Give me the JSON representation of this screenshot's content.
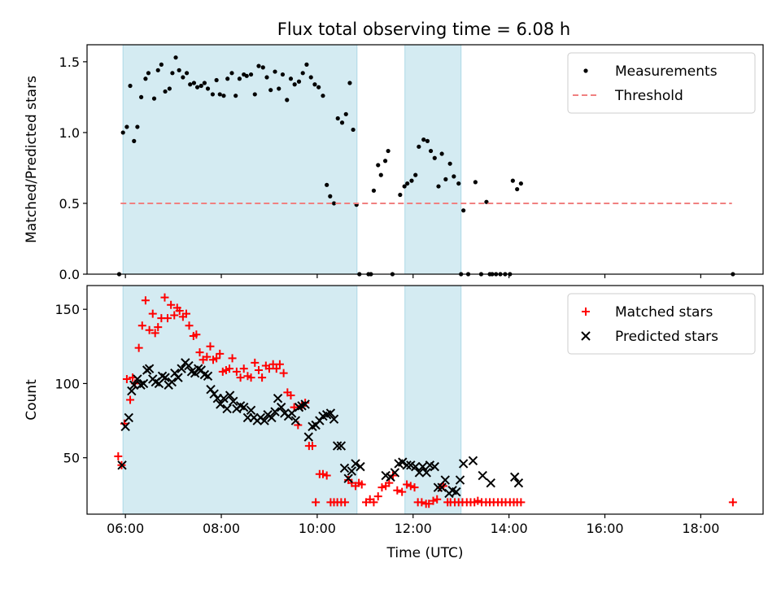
{
  "title": "Flux total observing time = 6.08 h",
  "chart_data": [
    {
      "type": "scatter",
      "ylabel": "Matched/Predicted stars",
      "xlabel": "",
      "xlim": [
        5.2,
        19.3
      ],
      "ylim": [
        0,
        1.62
      ],
      "yticks": [
        0.0,
        0.5,
        1.0,
        1.5
      ],
      "ytick_labels": [
        "0.0",
        "0.5",
        "1.0",
        "1.5"
      ],
      "xticks": [
        6,
        8,
        10,
        12,
        14,
        16,
        18
      ],
      "shaded_spans": [
        [
          5.95,
          10.83
        ],
        [
          11.83,
          13.0
        ]
      ],
      "shade_color": "#add8e6",
      "legend_position": "upper right",
      "series": [
        {
          "name": "Measurements",
          "marker": "dot",
          "color": "#000000",
          "x": [
            5.87,
            5.95,
            6.03,
            6.1,
            6.18,
            6.25,
            6.33,
            6.42,
            6.48,
            6.6,
            6.68,
            6.75,
            6.83,
            6.92,
            6.98,
            7.05,
            7.12,
            7.2,
            7.28,
            7.35,
            7.43,
            7.5,
            7.58,
            7.65,
            7.72,
            7.82,
            7.9,
            7.97,
            8.05,
            8.13,
            8.22,
            8.3,
            8.38,
            8.47,
            8.53,
            8.62,
            8.7,
            8.78,
            8.87,
            8.95,
            9.03,
            9.12,
            9.2,
            9.28,
            9.37,
            9.45,
            9.53,
            9.62,
            9.7,
            9.78,
            9.87,
            9.95,
            10.03,
            10.12,
            10.2,
            10.27,
            10.35,
            10.43,
            10.52,
            10.6,
            10.68,
            10.75,
            10.82,
            10.88,
            11.07,
            11.12,
            11.18,
            11.27,
            11.33,
            11.42,
            11.48,
            11.57,
            11.73,
            11.82,
            11.88,
            11.97,
            12.05,
            12.12,
            12.22,
            12.3,
            12.37,
            12.45,
            12.53,
            12.6,
            12.68,
            12.77,
            12.85,
            12.95,
            13.0,
            13.05,
            13.15,
            13.3,
            13.42,
            13.53,
            13.6,
            13.65,
            13.73,
            13.82,
            13.92,
            14.02,
            14.08,
            14.17,
            14.25,
            18.67
          ],
          "y": [
            0.0,
            1.0,
            1.04,
            1.33,
            0.94,
            1.04,
            1.25,
            1.38,
            1.42,
            1.24,
            1.44,
            1.48,
            1.29,
            1.31,
            1.42,
            1.53,
            1.44,
            1.39,
            1.42,
            1.34,
            1.35,
            1.32,
            1.33,
            1.35,
            1.31,
            1.27,
            1.37,
            1.27,
            1.26,
            1.38,
            1.42,
            1.26,
            1.38,
            1.41,
            1.4,
            1.41,
            1.27,
            1.47,
            1.46,
            1.39,
            1.3,
            1.43,
            1.31,
            1.41,
            1.23,
            1.38,
            1.34,
            1.36,
            1.42,
            1.48,
            1.39,
            1.34,
            1.32,
            1.26,
            0.63,
            0.55,
            0.5,
            1.1,
            1.07,
            1.13,
            1.35,
            1.02,
            0.49,
            0.0,
            0.0,
            0.0,
            0.59,
            0.77,
            0.7,
            0.8,
            0.87,
            0.0,
            0.56,
            0.62,
            0.64,
            0.66,
            0.7,
            0.9,
            0.95,
            0.94,
            0.87,
            0.82,
            0.62,
            0.85,
            0.67,
            0.78,
            0.69,
            0.64,
            0.0,
            0.45,
            0.0,
            0.65,
            0.0,
            0.51,
            0.0,
            0.0,
            0.0,
            0.0,
            0.0,
            0.0,
            0.66,
            0.6,
            0.64,
            0.0
          ]
        },
        {
          "name": "Threshold",
          "marker": "dashed-line",
          "color": "#f08080",
          "x": [
            5.9,
            18.65
          ],
          "y": [
            0.5,
            0.5
          ]
        }
      ]
    },
    {
      "type": "scatter",
      "ylabel": "Count",
      "xlabel": "Time (UTC)",
      "xlim": [
        5.2,
        19.3
      ],
      "ylim": [
        12,
        166
      ],
      "yticks": [
        50,
        100,
        150
      ],
      "ytick_labels": [
        "50",
        "100",
        "150"
      ],
      "xticks": [
        6,
        8,
        10,
        12,
        14,
        16,
        18
      ],
      "xtick_labels": [
        "06:00",
        "08:00",
        "10:00",
        "12:00",
        "14:00",
        "16:00",
        "18:00"
      ],
      "shaded_spans": [
        [
          5.95,
          10.83
        ],
        [
          11.83,
          13.0
        ]
      ],
      "shade_color": "#add8e6",
      "legend_position": "upper right",
      "series": [
        {
          "name": "Matched stars",
          "marker": "plus",
          "color": "#ff0000",
          "x": [
            5.85,
            5.92,
            5.98,
            6.03,
            6.1,
            6.15,
            6.2,
            6.28,
            6.35,
            6.42,
            6.5,
            6.57,
            6.62,
            6.68,
            6.75,
            6.82,
            6.88,
            6.95,
            7.02,
            7.08,
            7.13,
            7.2,
            7.27,
            7.33,
            7.42,
            7.48,
            7.55,
            7.62,
            7.7,
            7.77,
            7.83,
            7.9,
            7.97,
            8.03,
            8.1,
            8.17,
            8.23,
            8.32,
            8.4,
            8.47,
            8.55,
            8.62,
            8.7,
            8.78,
            8.85,
            8.93,
            9.0,
            9.08,
            9.15,
            9.22,
            9.3,
            9.38,
            9.45,
            9.52,
            9.6,
            9.68,
            9.75,
            9.83,
            9.9,
            9.97,
            10.05,
            10.12,
            10.2,
            10.28,
            10.35,
            10.42,
            10.5,
            10.58,
            10.65,
            10.72,
            10.8,
            10.87,
            10.93,
            11.02,
            11.1,
            11.18,
            11.27,
            11.35,
            11.43,
            11.5,
            11.58,
            11.67,
            11.77,
            11.87,
            11.95,
            12.03,
            12.1,
            12.18,
            12.27,
            12.33,
            12.42,
            12.5,
            12.57,
            12.63,
            12.72,
            12.78,
            12.87,
            12.95,
            13.03,
            13.12,
            13.2,
            13.28,
            13.35,
            13.43,
            13.52,
            13.6,
            13.68,
            13.77,
            13.85,
            13.93,
            14.02,
            14.1,
            14.17,
            14.25,
            18.67
          ],
          "y": [
            51,
            45,
            73,
            103,
            89,
            104,
            100,
            124,
            139,
            156,
            136,
            147,
            134,
            138,
            144,
            158,
            144,
            153,
            146,
            151,
            149,
            145,
            147,
            139,
            132,
            133,
            121,
            116,
            118,
            125,
            116,
            117,
            120,
            108,
            109,
            110,
            117,
            108,
            104,
            110,
            105,
            104,
            114,
            109,
            104,
            112,
            110,
            113,
            110,
            113,
            107,
            94,
            92,
            84,
            72,
            85,
            87,
            58,
            58,
            20,
            39,
            39,
            38,
            20,
            20,
            20,
            20,
            20,
            35,
            33,
            31,
            33,
            32,
            20,
            22,
            20,
            24,
            30,
            31,
            33,
            38,
            28,
            27,
            32,
            31,
            30,
            20,
            20,
            19,
            19,
            21,
            22,
            30,
            31,
            20,
            20,
            20,
            20,
            20,
            20,
            20,
            20,
            21,
            20,
            20,
            20,
            20,
            20,
            20,
            20,
            20,
            20,
            20,
            20,
            20
          ],
          "data_only_note": ""
        },
        {
          "name": "Predicted stars",
          "marker": "x",
          "color": "#000000",
          "x": [
            5.93,
            6.0,
            6.07,
            6.13,
            6.18,
            6.25,
            6.32,
            6.38,
            6.45,
            6.5,
            6.57,
            6.63,
            6.7,
            6.77,
            6.83,
            6.9,
            6.97,
            7.03,
            7.1,
            7.17,
            7.25,
            7.32,
            7.38,
            7.45,
            7.52,
            7.58,
            7.65,
            7.72,
            7.78,
            7.85,
            7.92,
            7.98,
            8.05,
            8.12,
            8.18,
            8.25,
            8.32,
            8.4,
            8.47,
            8.55,
            8.62,
            8.68,
            8.75,
            8.82,
            8.9,
            8.97,
            9.05,
            9.12,
            9.18,
            9.25,
            9.32,
            9.4,
            9.47,
            9.55,
            9.62,
            9.68,
            9.75,
            9.82,
            9.9,
            9.97,
            10.05,
            10.12,
            10.2,
            10.28,
            10.35,
            10.42,
            10.5,
            10.57,
            10.65,
            10.72,
            10.8,
            10.9,
            11.43,
            11.53,
            11.62,
            11.7,
            11.78,
            11.87,
            11.95,
            12.05,
            12.13,
            12.2,
            12.28,
            12.35,
            12.45,
            12.52,
            12.6,
            12.67,
            12.75,
            12.82,
            12.9,
            12.98,
            13.05,
            13.25,
            13.45,
            13.62,
            14.12,
            14.2
          ],
          "y": [
            45,
            71,
            77,
            95,
            99,
            103,
            99,
            100,
            109,
            110,
            103,
            101,
            100,
            105,
            104,
            99,
            101,
            107,
            104,
            110,
            114,
            112,
            108,
            107,
            110,
            109,
            106,
            105,
            96,
            93,
            90,
            86,
            90,
            83,
            92,
            88,
            83,
            85,
            84,
            77,
            82,
            77,
            75,
            77,
            75,
            79,
            77,
            81,
            90,
            84,
            80,
            78,
            80,
            75,
            84,
            85,
            86,
            64,
            71,
            72,
            75,
            78,
            79,
            80,
            76,
            58,
            58,
            43,
            36,
            41,
            46,
            44,
            38,
            37,
            40,
            46,
            47,
            45,
            45,
            44,
            40,
            44,
            40,
            45,
            44,
            30,
            30,
            35,
            26,
            28,
            27,
            35,
            46,
            48,
            38,
            33,
            37,
            33
          ]
        }
      ]
    }
  ]
}
